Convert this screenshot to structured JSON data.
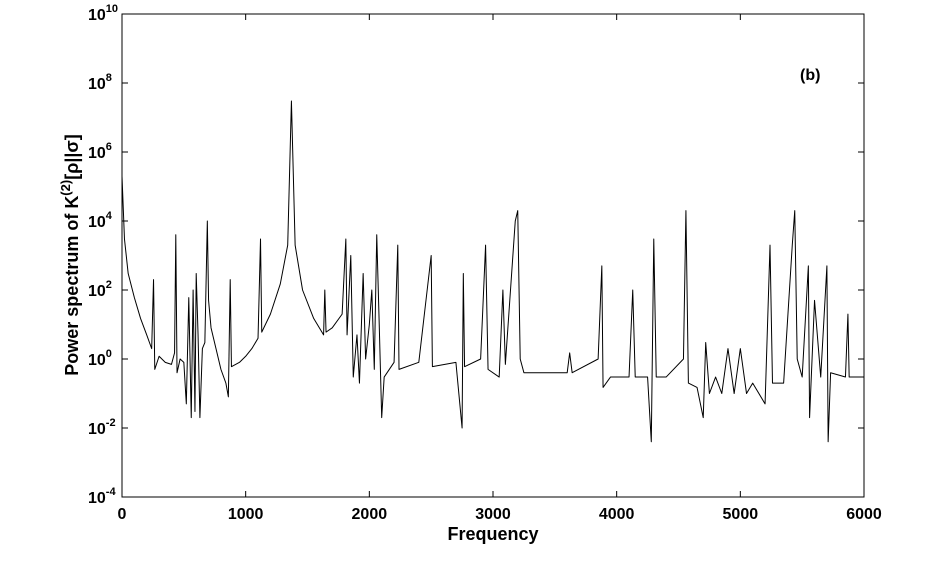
{
  "chart_data": {
    "type": "line",
    "xlabel": "Frequency",
    "ylabel": {
      "text": "Power spectrum of K",
      "superscript": "(2)",
      "suffix": "[ρ||σ]"
    },
    "annotation": "(b)",
    "color": "#000000",
    "ylog": true,
    "xlim": [
      0,
      6000
    ],
    "ylim": [
      0.0001,
      10000000000
    ],
    "xticks": [
      0,
      1000,
      2000,
      3000,
      4000,
      5000,
      6000
    ],
    "yticks": [
      {
        "value": 0.0001,
        "label": "10",
        "exponent": "-4"
      },
      {
        "value": 0.01,
        "label": "10",
        "exponent": "-2"
      },
      {
        "value": 1,
        "label": "10",
        "exponent": "0"
      },
      {
        "value": 100,
        "label": "10",
        "exponent": "2"
      },
      {
        "value": 10000,
        "label": "10",
        "exponent": "4"
      },
      {
        "value": 1000000,
        "label": "10",
        "exponent": "6"
      },
      {
        "value": 100000000,
        "label": "10",
        "exponent": "8"
      },
      {
        "value": 10000000000,
        "label": "10",
        "exponent": "10"
      }
    ],
    "x": [
      0,
      20,
      50,
      100,
      150,
      200,
      240,
      255,
      265,
      300,
      350,
      400,
      425,
      435,
      445,
      470,
      500,
      520,
      540,
      560,
      575,
      590,
      600,
      615,
      630,
      650,
      670,
      690,
      700,
      720,
      760,
      800,
      840,
      860,
      875,
      885,
      950,
      1000,
      1050,
      1100,
      1120,
      1130,
      1200,
      1280,
      1340,
      1370,
      1400,
      1460,
      1550,
      1630,
      1640,
      1650,
      1700,
      1780,
      1810,
      1820,
      1850,
      1870,
      1900,
      1920,
      1950,
      1970,
      2000,
      2020,
      2040,
      2060,
      2080,
      2100,
      2120,
      2200,
      2230,
      2240,
      2400,
      2500,
      2510,
      2700,
      2750,
      2760,
      2770,
      2900,
      2940,
      2960,
      3050,
      3080,
      3100,
      3180,
      3200,
      3220,
      3250,
      3400,
      3600,
      3620,
      3640,
      3850,
      3880,
      3890,
      3950,
      4100,
      4130,
      4150,
      4250,
      4280,
      4300,
      4320,
      4400,
      4540,
      4560,
      4580,
      4650,
      4700,
      4720,
      4750,
      4800,
      4850,
      4900,
      4950,
      5000,
      5050,
      5100,
      5200,
      5240,
      5260,
      5350,
      5420,
      5440,
      5460,
      5500,
      5550,
      5560,
      5600,
      5650,
      5700,
      5710,
      5730,
      5850,
      5870,
      5880,
      6000
    ],
    "values": [
      200000,
      3000,
      300,
      60,
      15,
      5,
      2,
      200,
      0.5,
      1.2,
      0.8,
      0.7,
      1.5,
      4000,
      0.4,
      1,
      0.8,
      0.05,
      60,
      0.02,
      100,
      0.03,
      300,
      5,
      0.02,
      2,
      3,
      10000,
      50,
      8,
      2,
      0.5,
      0.2,
      0.08,
      200,
      0.6,
      0.8,
      1.2,
      2,
      4,
      3000,
      6,
      20,
      150,
      2000,
      30000000,
      2000,
      100,
      15,
      5,
      100,
      6,
      8,
      20,
      3000,
      5,
      1000,
      0.3,
      5,
      0.2,
      300,
      1,
      10,
      100,
      0.5,
      4000,
      10,
      0.02,
      0.3,
      0.8,
      2000,
      0.5,
      0.8,
      1000,
      0.6,
      0.8,
      0.01,
      300,
      0.6,
      1,
      2000,
      0.5,
      0.3,
      100,
      0.7,
      10000,
      20000,
      1,
      0.4,
      0.4,
      0.4,
      1.5,
      0.4,
      1,
      500,
      0.15,
      0.3,
      0.3,
      100,
      0.3,
      0.3,
      0.004,
      3000,
      0.3,
      0.3,
      1,
      20000,
      0.2,
      0.15,
      0.02,
      3,
      0.1,
      0.3,
      0.1,
      2,
      0.1,
      2,
      0.1,
      0.2,
      0.05,
      2000,
      0.2,
      0.2,
      2000,
      20000,
      1,
      0.3,
      500,
      0.02,
      50,
      0.3,
      500,
      0.004,
      0.4,
      0.3,
      20,
      0.3,
      0.3
    ]
  }
}
